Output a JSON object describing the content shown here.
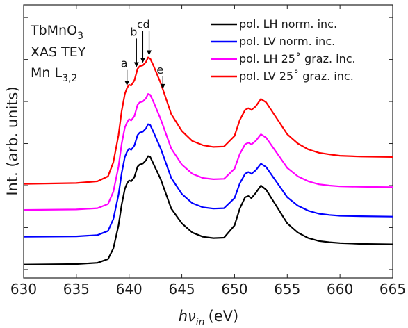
{
  "chart_data": {
    "type": "line",
    "xlabel": "hν_in (eV)",
    "xlabel_parts": {
      "var": "hν",
      "sub": "in",
      "unit": "(eV)"
    },
    "ylabel": "Int. (arb. units)",
    "xlim": [
      630,
      665
    ],
    "ylim": [
      -0.2,
      6.3
    ],
    "x_ticks": [
      630,
      635,
      640,
      645,
      650,
      655,
      660,
      665
    ],
    "y_ticks_unlabeled": true,
    "grid": false,
    "legend_position": "top-right",
    "notes": {
      "line1": {
        "main": "TbMnO",
        "sub": "3"
      },
      "line2": {
        "main": "XAS TEY"
      },
      "line3": {
        "main": "Mn L",
        "sub": "3,2"
      }
    },
    "series": [
      {
        "name": "pol. LH norm. inc.",
        "color": "#000000",
        "offset": 0.0,
        "x": [
          630,
          635,
          637,
          638,
          638.5,
          639,
          639.3,
          639.6,
          639.8,
          640,
          640.2,
          640.5,
          640.8,
          641,
          641.3,
          641.6,
          641.8,
          642,
          642.3,
          643,
          644,
          645,
          646,
          647,
          648,
          649,
          650,
          650.5,
          651,
          651.3,
          651.6,
          652,
          652.5,
          653,
          654,
          655,
          656,
          657,
          658,
          659,
          660,
          662,
          665
        ],
        "y": [
          0.12,
          0.13,
          0.16,
          0.25,
          0.5,
          1.05,
          1.55,
          1.92,
          2.05,
          2.12,
          2.1,
          2.2,
          2.45,
          2.5,
          2.52,
          2.6,
          2.7,
          2.68,
          2.52,
          2.15,
          1.45,
          1.1,
          0.88,
          0.78,
          0.75,
          0.76,
          1.05,
          1.45,
          1.72,
          1.75,
          1.7,
          1.82,
          2.0,
          1.9,
          1.5,
          1.1,
          0.88,
          0.75,
          0.68,
          0.65,
          0.63,
          0.61,
          0.6
        ]
      },
      {
        "name": "pol. LV norm. inc.",
        "color": "#0000ff",
        "offset": 0.0,
        "x": [
          630,
          635,
          637,
          638,
          638.5,
          639,
          639.3,
          639.6,
          639.8,
          640,
          640.2,
          640.5,
          640.8,
          641,
          641.3,
          641.6,
          641.8,
          642,
          642.3,
          643,
          644,
          645,
          646,
          647,
          648,
          649,
          650,
          650.5,
          651,
          651.3,
          651.6,
          652,
          652.5,
          653,
          654,
          655,
          656,
          657,
          658,
          659,
          660,
          662,
          665
        ],
        "y": [
          0.78,
          0.79,
          0.82,
          0.92,
          1.2,
          1.78,
          2.3,
          2.68,
          2.8,
          2.88,
          2.85,
          2.95,
          3.2,
          3.26,
          3.28,
          3.36,
          3.46,
          3.44,
          3.28,
          2.88,
          2.18,
          1.8,
          1.58,
          1.48,
          1.45,
          1.46,
          1.7,
          2.05,
          2.28,
          2.32,
          2.28,
          2.36,
          2.52,
          2.44,
          2.08,
          1.72,
          1.52,
          1.4,
          1.33,
          1.3,
          1.28,
          1.27,
          1.26
        ]
      },
      {
        "name": "pol. LH 25˚ graz. inc.",
        "color": "#ff00ff",
        "offset": 0.0,
        "x": [
          630,
          635,
          637,
          638,
          638.5,
          639,
          639.3,
          639.6,
          639.8,
          640,
          640.2,
          640.5,
          640.8,
          641,
          641.3,
          641.6,
          641.8,
          642,
          642.3,
          643,
          644,
          645,
          646,
          647,
          648,
          649,
          650,
          650.5,
          651,
          651.3,
          651.6,
          652,
          652.5,
          653,
          654,
          655,
          656,
          657,
          658,
          659,
          660,
          662,
          665
        ],
        "y": [
          1.42,
          1.43,
          1.46,
          1.56,
          1.85,
          2.45,
          3.0,
          3.38,
          3.5,
          3.58,
          3.55,
          3.65,
          3.92,
          3.98,
          4.0,
          4.08,
          4.18,
          4.16,
          4.0,
          3.58,
          2.88,
          2.5,
          2.28,
          2.18,
          2.15,
          2.16,
          2.4,
          2.75,
          2.98,
          3.02,
          2.98,
          3.06,
          3.22,
          3.14,
          2.78,
          2.42,
          2.22,
          2.1,
          2.03,
          2.0,
          1.98,
          1.97,
          1.96
        ]
      },
      {
        "name": "pol. LV 25˚ graz. inc.",
        "color": "#ff0000",
        "offset": 0.0,
        "x": [
          630,
          635,
          637,
          638,
          638.5,
          639,
          639.3,
          639.6,
          639.8,
          640,
          640.2,
          640.5,
          640.8,
          641,
          641.3,
          641.6,
          641.8,
          642,
          642.3,
          643,
          644,
          645,
          646,
          647,
          648,
          649,
          650,
          650.5,
          651,
          651.3,
          651.6,
          652,
          652.5,
          653,
          654,
          655,
          656,
          657,
          658,
          659,
          660,
          662,
          665
        ],
        "y": [
          2.04,
          2.06,
          2.1,
          2.22,
          2.55,
          3.2,
          3.78,
          4.18,
          4.32,
          4.4,
          4.38,
          4.5,
          4.78,
          4.84,
          4.86,
          4.94,
          5.05,
          5.02,
          4.86,
          4.44,
          3.7,
          3.3,
          3.06,
          2.96,
          2.92,
          2.93,
          3.18,
          3.56,
          3.8,
          3.84,
          3.8,
          3.88,
          4.06,
          3.98,
          3.6,
          3.22,
          3.0,
          2.86,
          2.78,
          2.74,
          2.71,
          2.69,
          2.68
        ]
      }
    ],
    "arrows": [
      {
        "label": "a",
        "x": 639.8,
        "from_y": 4.75,
        "to_y": 4.38
      },
      {
        "label": "b",
        "x": 640.7,
        "from_y": 5.5,
        "to_y": 4.82
      },
      {
        "label": "c",
        "x": 641.3,
        "from_y": 5.68,
        "to_y": 4.92
      },
      {
        "label": "d",
        "x": 641.9,
        "from_y": 5.68,
        "to_y": 5.1
      },
      {
        "label": "e",
        "x": 643.2,
        "from_y": 4.6,
        "to_y": 4.3
      }
    ]
  }
}
